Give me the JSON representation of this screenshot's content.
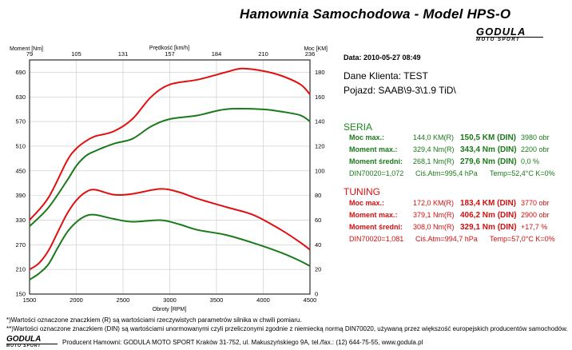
{
  "header": {
    "title": "Hamownia Samochodowa   -   Model HPS-O",
    "logo_main": "GODULA",
    "logo_sub": "MOTO SPORT"
  },
  "chart_data": {
    "type": "line",
    "x_label": "Obroty [RPM]",
    "x_range": [
      1500,
      4500
    ],
    "x_ticks": [
      1500,
      2000,
      2500,
      3000,
      3500,
      4000,
      4500
    ],
    "left_axis_label": "Moment [Nm]",
    "left_range": [
      150,
      720
    ],
    "left_ticks": [
      150,
      210,
      270,
      330,
      390,
      450,
      510,
      570,
      630,
      690
    ],
    "right_axis_label": "Moc [KM]",
    "right_range": [
      0,
      190
    ],
    "right_ticks": [
      0,
      20,
      40,
      60,
      80,
      100,
      120,
      140,
      160,
      180
    ],
    "top_axis_label": "Prędkość [km/h]",
    "top_ticks": [
      "79",
      "105",
      "131",
      "157",
      "184",
      "210",
      "236"
    ],
    "grid": true,
    "series": [
      {
        "color": "#e01010",
        "axis": "right",
        "x": [
          1500,
          1700,
          1900,
          2000,
          2100,
          2200,
          2400,
          2600,
          2800,
          3000,
          3300,
          3600,
          3770,
          4000,
          4200,
          4400,
          4500
        ],
        "y": [
          60,
          78,
          108,
          118,
          124,
          128,
          132,
          142,
          160,
          170,
          174,
          180,
          183,
          181,
          177,
          170,
          162
        ]
      },
      {
        "color": "#e01010",
        "axis": "left",
        "x": [
          1500,
          1600,
          1700,
          1800,
          1900,
          2000,
          2100,
          2200,
          2400,
          2600,
          2900,
          3100,
          3300,
          3600,
          3900,
          4200,
          4400,
          4500
        ],
        "y": [
          210,
          225,
          255,
          300,
          345,
          378,
          398,
          404,
          392,
          394,
          406,
          398,
          382,
          362,
          342,
          305,
          275,
          258
        ]
      },
      {
        "color": "#1a7a1a",
        "axis": "right",
        "x": [
          1500,
          1700,
          1900,
          2000,
          2100,
          2200,
          2400,
          2600,
          2800,
          3000,
          3300,
          3600,
          3980,
          4200,
          4400,
          4500
        ],
        "y": [
          55,
          70,
          92,
          104,
          112,
          116,
          122,
          126,
          136,
          142,
          145,
          150,
          150,
          148,
          145,
          140
        ]
      },
      {
        "color": "#1a7a1a",
        "axis": "left",
        "x": [
          1500,
          1600,
          1700,
          1800,
          1900,
          2000,
          2100,
          2200,
          2400,
          2600,
          2900,
          3100,
          3300,
          3600,
          3900,
          4200,
          4400,
          4500
        ],
        "y": [
          185,
          200,
          222,
          262,
          300,
          325,
          340,
          343,
          333,
          326,
          330,
          320,
          306,
          294,
          274,
          250,
          230,
          218
        ]
      }
    ]
  },
  "info": {
    "date": "Data: 2010-05-27  08:49",
    "client": "Dane Klienta: TEST",
    "vehicle": "Pojazd: SAAB\\9-3\\1.9 TiD\\"
  },
  "seria": {
    "heading": "SERIA",
    "rows": [
      {
        "label": "Moc max.:",
        "v1": "144,0 KM(R)",
        "v2": "150,5 KM (DIN)",
        "v3": "3980 obr"
      },
      {
        "label": "Moment max.:",
        "v1": "329,4 Nm(R)",
        "v2": "343,4 Nm (DIN)",
        "v3": "2200 obr"
      },
      {
        "label": "Moment średni:",
        "v1": "268,1 Nm(R)",
        "v2": "279,6 Nm (DIN)",
        "v3": "0,0 %"
      }
    ],
    "din": "DIN70020=1,072",
    "atm": "Ciś.Atm=995,4 hPa",
    "temp": "Temp=52,4°C  K=0%"
  },
  "tuning": {
    "heading": "TUNING",
    "rows": [
      {
        "label": "Moc max.:",
        "v1": "172,0 KM(R)",
        "v2": "183,4 KM (DIN)",
        "v3": "3770 obr"
      },
      {
        "label": "Moment max.:",
        "v1": "379,1 Nm(R)",
        "v2": "406,2 Nm (DIN)",
        "v3": "2900 obr"
      },
      {
        "label": "Moment średni:",
        "v1": "308,0 Nm(R)",
        "v2": "329,1 Nm (DIN)",
        "v3": "+17,7 %"
      }
    ],
    "din": "DIN70020=1,081",
    "atm": "Ciś.Atm=994,7 hPa",
    "temp": "Temp=57,0°C  K=0%"
  },
  "footer": {
    "note1": "*)Wartości oznaczone znaczkiem (R) są wartościami rzeczywistych parametrów silnika w chwili pomiaru.",
    "note2": "**)Wartości oznaczone znaczkiem (DIN) są wartościami unormowanymi czyli przeliczonymi zgodnie z niemiecką normą DIN70020, używaną przez większość europejskich producentów samochodów.",
    "producer": "Producent Hamowni: GODULA MOTO SPORT Kraków 31-752, ul. Makuszyńskiego 9A, tel./fax.: (12) 644-75-55, www.godula.pl",
    "logo_main": "GODULA",
    "logo_sub": "MOTO SPORT"
  }
}
